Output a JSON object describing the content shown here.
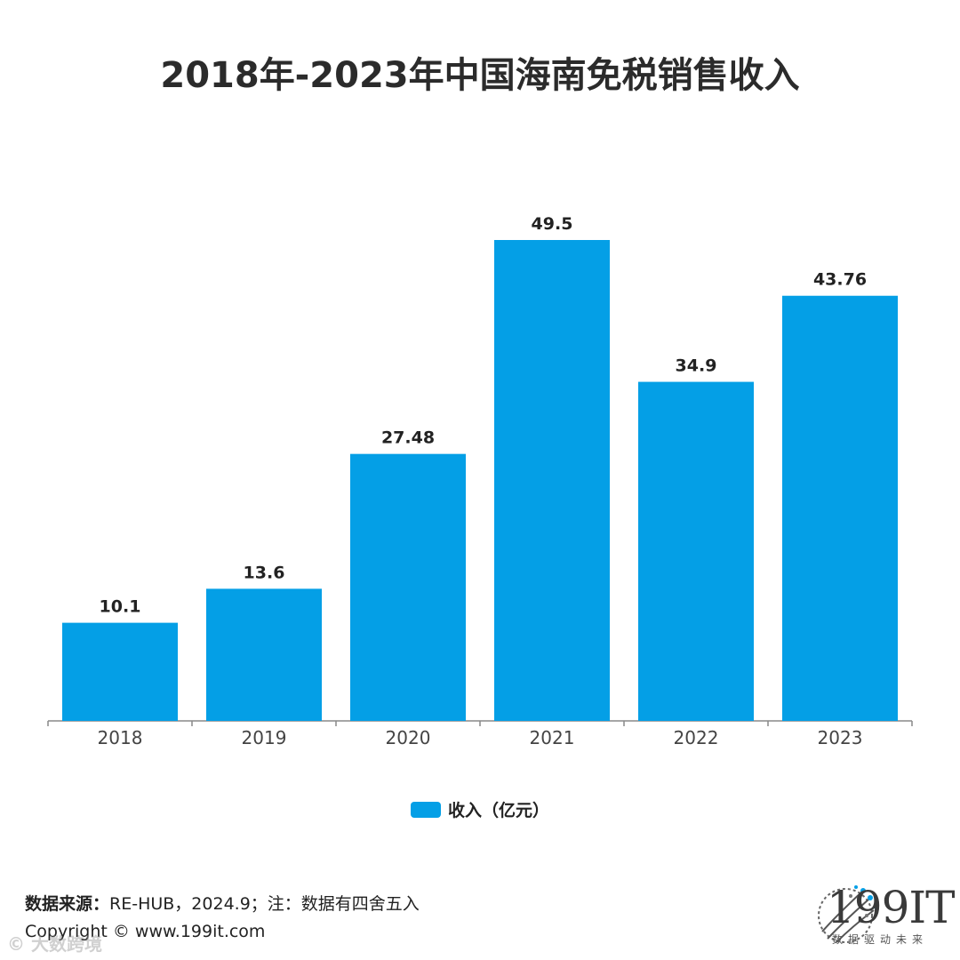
{
  "title": "2018年-2023年中国海南免税销售收入",
  "chart_data": {
    "type": "bar",
    "title": "2018年-2023年中国海南免税销售收入",
    "categories": [
      "2018",
      "2019",
      "2020",
      "2021",
      "2022",
      "2023"
    ],
    "series": [
      {
        "name": "收入（亿元）",
        "values": [
          10.1,
          13.6,
          27.48,
          49.5,
          34.9,
          43.76
        ]
      }
    ],
    "data_labels": [
      "10.1",
      "13.6",
      "27.48",
      "49.5",
      "34.9",
      "43.76"
    ],
    "xlabel": "",
    "ylabel": "",
    "ylim": [
      0,
      50
    ],
    "grid": false,
    "legend_position": "bottom-center",
    "bar_color": "#049fe6"
  },
  "legend": {
    "label": "收入（亿元）"
  },
  "footer": {
    "source_label": "数据来源：",
    "source_text": "RE-HUB，2024.9；注：数据有四舍五入",
    "copyright": "Copyright © www.199it.com",
    "watermark": "© 大数跨境"
  },
  "logo": {
    "text": "199IT",
    "tagline": "数据驱动未来"
  }
}
